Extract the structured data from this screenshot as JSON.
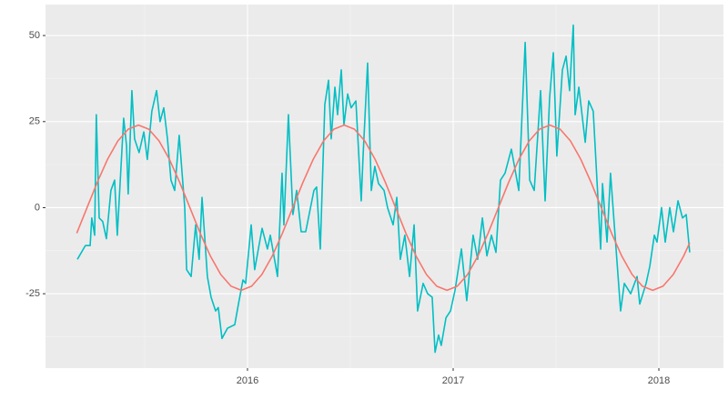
{
  "chart_data": {
    "type": "line",
    "xlim": [
      2015.018,
      2018.314
    ],
    "xticks": [
      2016,
      2017,
      2018
    ],
    "ylim": [
      -46.6,
      59
    ],
    "yticks": [
      -25,
      0,
      25,
      50
    ],
    "grid": true,
    "series": [
      {
        "color": "#00bfc4",
        "x": [
          2015.173,
          2015.212,
          2015.235,
          2015.243,
          2015.257,
          2015.265,
          2015.279,
          2015.296,
          2015.314,
          2015.336,
          2015.354,
          2015.367,
          2015.398,
          2015.412,
          2015.42,
          2015.438,
          2015.451,
          2015.473,
          2015.496,
          2015.513,
          2015.535,
          2015.558,
          2015.575,
          2015.593,
          2015.611,
          2015.628,
          2015.646,
          2015.668,
          2015.695,
          2015.704,
          2015.726,
          2015.748,
          2015.765,
          2015.779,
          2015.805,
          2015.823,
          2015.845,
          2015.858,
          2015.876,
          2015.903,
          2015.938,
          2015.956,
          2015.978,
          2015.991,
          2016.018,
          2016.035,
          2016.071,
          2016.097,
          2016.111,
          2016.146,
          2016.168,
          2016.177,
          2016.199,
          2016.221,
          2016.239,
          2016.261,
          2016.283,
          2016.323,
          2016.336,
          2016.354,
          2016.376,
          2016.394,
          2016.407,
          2016.425,
          2016.438,
          2016.456,
          2016.469,
          2016.487,
          2016.504,
          2016.527,
          2016.553,
          2016.562,
          2016.584,
          2016.602,
          2016.619,
          2016.637,
          2016.664,
          2016.681,
          2016.708,
          2016.726,
          2016.743,
          2016.765,
          2016.788,
          2016.81,
          2016.827,
          2016.854,
          2016.876,
          2016.898,
          2016.912,
          2016.929,
          2016.942,
          2016.965,
          2016.987,
          2017.009,
          2017.04,
          2017.066,
          2017.097,
          2017.119,
          2017.142,
          2017.164,
          2017.186,
          2017.208,
          2017.23,
          2017.252,
          2017.283,
          2017.319,
          2017.35,
          2017.372,
          2017.394,
          2017.425,
          2017.447,
          2017.469,
          2017.487,
          2017.504,
          2017.531,
          2017.549,
          2017.566,
          2017.584,
          2017.593,
          2017.611,
          2017.642,
          2017.659,
          2017.681,
          2017.717,
          2017.726,
          2017.748,
          2017.765,
          2017.814,
          2017.832,
          2017.863,
          2017.894,
          2017.907,
          2017.938,
          2017.956,
          2017.978,
          2017.991,
          2018.013,
          2018.031,
          2018.053,
          2018.071,
          2018.093,
          2018.115,
          2018.133,
          2018.15
        ],
        "values": [
          -15,
          -11,
          -11,
          -3,
          -8,
          27,
          -3,
          -4,
          -9,
          5,
          8,
          -8,
          26,
          18,
          4,
          34,
          20,
          16,
          22,
          14,
          28,
          34,
          25,
          29,
          20,
          8,
          5,
          21,
          0,
          -18,
          -20,
          -5,
          -15,
          3,
          -20,
          -26,
          -30,
          -29,
          -38,
          -35,
          -34,
          -28,
          -21,
          -22,
          -5,
          -18,
          -6,
          -12,
          -8,
          -20,
          10,
          -5,
          27,
          -2,
          5,
          -7,
          -7,
          5,
          6,
          -12,
          30,
          37,
          20,
          35,
          27,
          40,
          24,
          33,
          29,
          31,
          2,
          15,
          42,
          5,
          12,
          7,
          5,
          0,
          -5,
          3,
          -15,
          -8,
          -20,
          -5,
          -30,
          -22,
          -25,
          -26,
          -42,
          -37,
          -40,
          -32,
          -30,
          -24,
          -12,
          -27,
          -8,
          -15,
          -3,
          -14,
          -8,
          -13,
          8,
          10,
          17,
          5,
          48,
          8,
          5,
          34,
          2,
          32,
          45,
          15,
          40,
          44,
          34,
          53,
          27,
          35,
          19,
          31,
          28,
          -12,
          7,
          -10,
          10,
          -30,
          -22,
          -25,
          -20,
          -28,
          -22,
          -17,
          -8,
          -10,
          0,
          -10,
          0,
          -7,
          2,
          -3,
          -2,
          -13
        ]
      },
      {
        "color": "#f8766d",
        "x": [
          2015.17,
          2015.22,
          2015.27,
          2015.32,
          2015.37,
          2015.42,
          2015.47,
          2015.52,
          2015.57,
          2015.62,
          2015.67,
          2015.72,
          2015.77,
          2015.82,
          2015.87,
          2015.92,
          2015.97,
          2016.02,
          2016.07,
          2016.12,
          2016.17,
          2016.22,
          2016.27,
          2016.32,
          2016.37,
          2016.42,
          2016.47,
          2016.52,
          2016.57,
          2016.62,
          2016.67,
          2016.72,
          2016.77,
          2016.82,
          2016.87,
          2016.92,
          2016.97,
          2017.02,
          2017.07,
          2017.12,
          2017.17,
          2017.22,
          2017.27,
          2017.32,
          2017.37,
          2017.42,
          2017.47,
          2017.52,
          2017.57,
          2017.62,
          2017.67,
          2017.72,
          2017.77,
          2017.82,
          2017.87,
          2017.92,
          2017.97,
          2018.02,
          2018.07,
          2018.12,
          2018.15
        ],
        "values": [
          -7.4,
          0,
          7.4,
          14.1,
          19.4,
          22.8,
          24,
          22.8,
          19.4,
          14.1,
          7.4,
          0,
          -7.4,
          -14.1,
          -19.4,
          -22.8,
          -24,
          -22.8,
          -19.4,
          -14.1,
          -7.4,
          0,
          7.4,
          14.1,
          19.4,
          22.8,
          24,
          22.8,
          19.4,
          14.1,
          7.4,
          0,
          -7.4,
          -14.1,
          -19.4,
          -22.8,
          -24,
          -22.8,
          -19.4,
          -14.1,
          -7.4,
          0,
          7.4,
          14.1,
          19.4,
          22.8,
          24,
          22.8,
          19.4,
          14.1,
          7.4,
          0,
          -7.4,
          -14.1,
          -19.4,
          -22.8,
          -24,
          -22.8,
          -19.4,
          -14.1,
          -10.2
        ]
      }
    ]
  }
}
